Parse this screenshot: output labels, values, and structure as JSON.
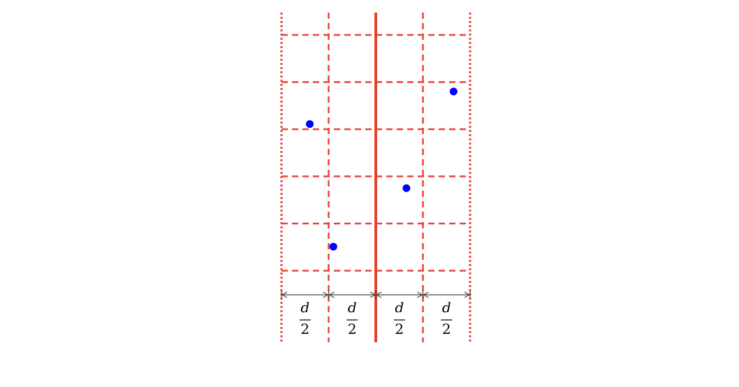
{
  "diagram": {
    "colors": {
      "grid_line": "#e8443a",
      "center_line": "#e0432f",
      "point": "#0000ff",
      "arrow": "#444444",
      "text": "#000000"
    },
    "grid": {
      "columns": 4,
      "rows": 5,
      "outer_style": "dotted",
      "inner_vertical_style": "dashed",
      "center_vertical_style": "solid",
      "horizontal_style": "dashed"
    },
    "points": [
      {
        "col": 0.6,
        "row": 1.89
      },
      {
        "col": 1.1,
        "row": 4.49
      },
      {
        "col": 2.65,
        "row": 3.25
      },
      {
        "col": 3.65,
        "row": 1.2
      }
    ],
    "strip_widths": [
      {
        "numerator": "d",
        "denominator": "2"
      },
      {
        "numerator": "d",
        "denominator": "2"
      },
      {
        "numerator": "d",
        "denominator": "2"
      },
      {
        "numerator": "d",
        "denominator": "2"
      }
    ]
  }
}
